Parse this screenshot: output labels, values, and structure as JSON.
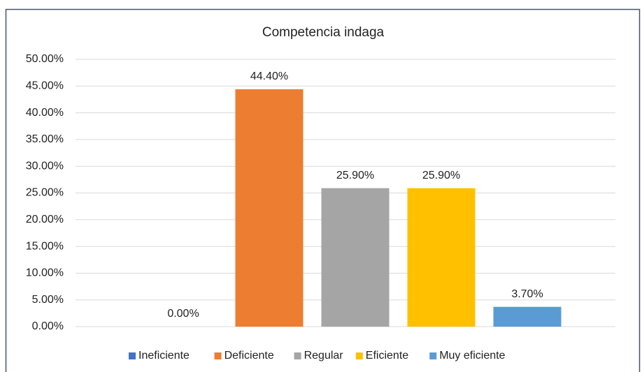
{
  "chart_data": {
    "type": "bar",
    "title": "Competencia indaga",
    "series": [
      {
        "name": "Ineficiente",
        "color": "#4472c4",
        "values": [
          0
        ],
        "value_labels": [
          "0.00%"
        ]
      },
      {
        "name": "Deficiente",
        "color": "#ed7d31",
        "values": [
          44.4
        ],
        "value_labels": [
          "44.40%"
        ]
      },
      {
        "name": "Regular",
        "color": "#a5a5a5",
        "values": [
          25.9
        ],
        "value_labels": [
          "25.90%"
        ]
      },
      {
        "name": "Eficiente",
        "color": "#ffc000",
        "values": [
          25.9
        ],
        "value_labels": [
          "25.90%"
        ]
      },
      {
        "name": "Muy eficiente",
        "color": "#5b9bd5",
        "values": [
          3.7
        ],
        "value_labels": [
          "3.70%"
        ]
      }
    ],
    "ylim": [
      0,
      50
    ],
    "yticks": [
      {
        "value": 0,
        "label": "0.00%"
      },
      {
        "value": 5,
        "label": "5.00%"
      },
      {
        "value": 10,
        "label": "10.00%"
      },
      {
        "value": 15,
        "label": "15.00%"
      },
      {
        "value": 20,
        "label": "20.00%"
      },
      {
        "value": 25,
        "label": "25.00%"
      },
      {
        "value": 30,
        "label": "30.00%"
      },
      {
        "value": 35,
        "label": "35.00%"
      },
      {
        "value": 40,
        "label": "40.00%"
      },
      {
        "value": 45,
        "label": "45.00%"
      },
      {
        "value": 50,
        "label": "50.00%"
      }
    ],
    "grid": true,
    "legend": "bottom"
  }
}
